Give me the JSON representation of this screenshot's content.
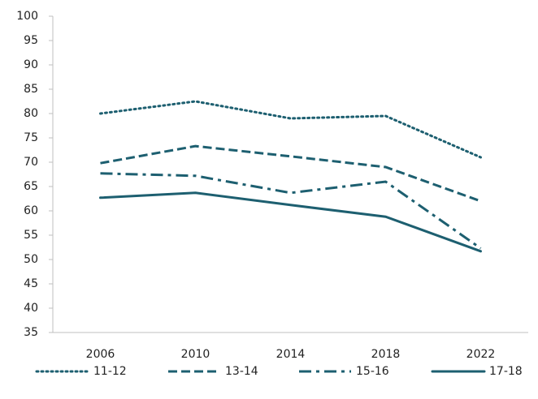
{
  "chart_data": {
    "type": "line",
    "categories": [
      "2006",
      "2010",
      "2014",
      "2018",
      "2022"
    ],
    "series": [
      {
        "name": "11-12",
        "color": "#1d5f70",
        "dash": "dotted",
        "values": [
          80,
          82.5,
          79,
          79.5,
          71
        ]
      },
      {
        "name": "13-14",
        "color": "#1d5f70",
        "dash": "dashed",
        "values": [
          69.8,
          73.3,
          71.2,
          69,
          62
        ]
      },
      {
        "name": "15-16",
        "color": "#1d5f70",
        "dash": "dashdot",
        "values": [
          67.7,
          67.2,
          63.7,
          66,
          52.3
        ]
      },
      {
        "name": "17-18",
        "color": "#1d5f70",
        "dash": "solid",
        "values": [
          62.7,
          63.7,
          61.2,
          58.8,
          51.7
        ]
      }
    ],
    "ylim": [
      35,
      100
    ],
    "yticks": [
      35,
      40,
      45,
      50,
      55,
      60,
      65,
      70,
      75,
      80,
      85,
      90,
      95,
      100
    ],
    "grid": false,
    "legend": "bottom"
  }
}
